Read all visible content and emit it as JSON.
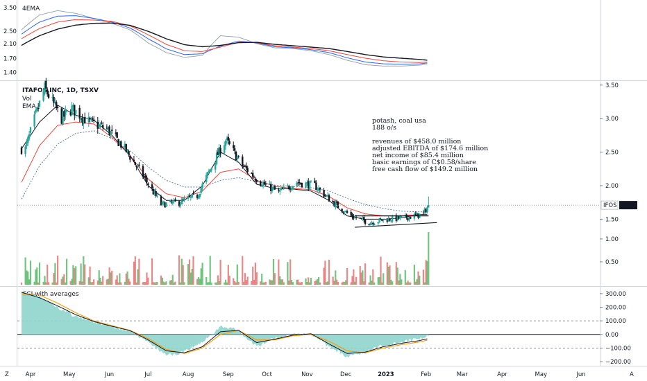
{
  "chart_data": [
    {
      "type": "line",
      "panel": "4ema",
      "title": "4EMA",
      "y_ticks": [
        "3.50",
        "2.50",
        "2.10",
        "1.70",
        "1.40"
      ],
      "y_tick_values": [
        3.5,
        2.5,
        2.1,
        1.7,
        1.4
      ],
      "ylim": [
        1.3,
        3.6
      ],
      "log_scale": true,
      "series": [
        {
          "color": "#131722",
          "x": [
            "2022-03-25",
            "2022-04-08",
            "2022-04-22",
            "2022-05-06",
            "2022-05-20",
            "2022-06-03",
            "2022-06-17",
            "2022-07-01",
            "2022-07-15",
            "2022-07-29",
            "2022-08-12",
            "2022-08-26",
            "2022-09-09",
            "2022-09-23",
            "2022-10-07",
            "2022-10-21",
            "2022-11-04",
            "2022-11-18",
            "2022-12-02",
            "2022-12-16",
            "2022-12-30",
            "2023-01-13",
            "2023-01-27",
            "2023-02-03"
          ],
          "values": [
            2.05,
            2.35,
            2.58,
            2.73,
            2.8,
            2.81,
            2.72,
            2.5,
            2.25,
            2.07,
            2.01,
            2.05,
            2.13,
            2.14,
            2.08,
            2.04,
            2.0,
            1.96,
            1.88,
            1.8,
            1.74,
            1.71,
            1.68,
            1.66
          ]
        },
        {
          "color": "#f44336",
          "x": [
            "2022-03-25",
            "2022-04-08",
            "2022-04-22",
            "2022-05-06",
            "2022-05-20",
            "2022-06-03",
            "2022-06-17",
            "2022-07-01",
            "2022-07-15",
            "2022-07-29",
            "2022-08-12",
            "2022-08-26",
            "2022-09-09",
            "2022-09-23",
            "2022-10-07",
            "2022-10-21",
            "2022-11-04",
            "2022-11-18",
            "2022-12-02",
            "2022-12-16",
            "2022-12-30",
            "2023-01-13",
            "2023-01-27",
            "2023-02-03"
          ],
          "values": [
            2.25,
            2.6,
            2.85,
            2.95,
            2.93,
            2.88,
            2.7,
            2.38,
            2.08,
            1.9,
            1.88,
            2.0,
            2.14,
            2.13,
            2.04,
            2.0,
            1.96,
            1.9,
            1.8,
            1.71,
            1.65,
            1.62,
            1.61,
            1.62
          ]
        },
        {
          "color": "#2962ff",
          "x": [
            "2022-03-25",
            "2022-04-08",
            "2022-04-22",
            "2022-05-06",
            "2022-05-20",
            "2022-06-03",
            "2022-06-17",
            "2022-07-01",
            "2022-07-15",
            "2022-07-29",
            "2022-08-12",
            "2022-08-26",
            "2022-09-09",
            "2022-09-23",
            "2022-10-07",
            "2022-10-21",
            "2022-11-04",
            "2022-11-18",
            "2022-12-02",
            "2022-12-16",
            "2022-12-30",
            "2023-01-13",
            "2023-01-27",
            "2023-02-03"
          ],
          "values": [
            2.4,
            2.85,
            3.1,
            3.12,
            3.0,
            2.85,
            2.62,
            2.25,
            1.95,
            1.8,
            1.82,
            2.03,
            2.18,
            2.12,
            2.01,
            1.98,
            1.93,
            1.85,
            1.72,
            1.62,
            1.58,
            1.57,
            1.58,
            1.6
          ]
        },
        {
          "color": "#9aa5b1",
          "x": [
            "2022-03-25",
            "2022-04-08",
            "2022-04-22",
            "2022-05-06",
            "2022-05-20",
            "2022-06-03",
            "2022-06-17",
            "2022-07-01",
            "2022-07-15",
            "2022-07-29",
            "2022-08-12",
            "2022-08-26",
            "2022-09-09",
            "2022-09-23",
            "2022-10-07",
            "2022-10-21",
            "2022-11-04",
            "2022-11-18",
            "2022-12-02",
            "2022-12-16",
            "2022-12-30",
            "2023-01-13",
            "2023-01-27",
            "2023-02-03"
          ],
          "values": [
            2.55,
            3.15,
            3.35,
            3.22,
            3.0,
            2.8,
            2.55,
            2.12,
            1.85,
            1.73,
            1.78,
            2.35,
            2.3,
            2.1,
            1.98,
            1.96,
            1.9,
            1.8,
            1.66,
            1.56,
            1.53,
            1.53,
            1.55,
            1.58
          ]
        }
      ]
    },
    {
      "type": "candlestick",
      "panel": "price",
      "title": "ITAFOS INC, 1D, TSXV",
      "legend": [
        "Vol",
        "EMA"
      ],
      "y_ticks": [
        "3.50",
        "3.00",
        "2.50",
        "2.00",
        "1.50"
      ],
      "y_tick_values": [
        3.5,
        3.0,
        2.5,
        2.0,
        1.5
      ],
      "ylim": [
        1.36,
        3.55
      ],
      "last_price_label": "IFOS",
      "last_price": "1.71",
      "last_price_value": 1.71,
      "candles_from": "2022-03-25",
      "candles_to": "2023-02-03",
      "key_closes": {
        "2022-03-28": 2.55,
        "2022-04-05": 3.05,
        "2022-04-12": 3.45,
        "2022-04-25": 3.0,
        "2022-05-03": 3.15,
        "2022-05-16": 2.95,
        "2022-05-30": 2.85,
        "2022-06-13": 2.55,
        "2022-06-27": 2.15,
        "2022-07-11": 1.72,
        "2022-07-25": 1.75,
        "2022-08-08": 1.85,
        "2022-08-22": 2.4,
        "2022-08-30": 2.68,
        "2022-09-12": 2.3,
        "2022-09-26": 2.05,
        "2022-10-10": 1.9,
        "2022-10-24": 2.05,
        "2022-11-07": 2.0,
        "2022-11-21": 1.75,
        "2022-12-05": 1.55,
        "2022-12-19": 1.45,
        "2023-01-02": 1.5,
        "2023-01-16": 1.52,
        "2023-01-30": 1.58,
        "2023-02-03": 1.71
      },
      "ema_lines": [
        {
          "color": "#131722",
          "style": "solid",
          "values": [
            2.55,
            2.95,
            3.2,
            3.05,
            2.98,
            2.75,
            2.45,
            2.0,
            1.78,
            1.78,
            2.0,
            2.5,
            2.35,
            2.02,
            1.96,
            1.95,
            1.92,
            1.78,
            1.55,
            1.5,
            1.5,
            1.52,
            1.57
          ]
        },
        {
          "color": "#f44336",
          "style": "solid",
          "values": [
            2.05,
            2.6,
            2.9,
            2.95,
            2.92,
            2.72,
            2.45,
            2.1,
            1.88,
            1.82,
            1.92,
            2.2,
            2.25,
            2.08,
            1.99,
            1.96,
            1.94,
            1.84,
            1.67,
            1.58,
            1.55,
            1.55,
            1.57
          ]
        },
        {
          "color": "#5b7fa3",
          "style": "dotted",
          "values": [
            1.8,
            2.3,
            2.62,
            2.78,
            2.82,
            2.7,
            2.52,
            2.28,
            2.08,
            1.98,
            1.98,
            2.08,
            2.12,
            2.06,
            2.01,
            1.99,
            1.97,
            1.92,
            1.81,
            1.72,
            1.66,
            1.62,
            1.61
          ]
        }
      ],
      "annotation_lines": [
        "potash, coal  usa",
        "188 o/s",
        "",
        "revenues of $458.0 million",
        "adjusted EBITDA of $174.6 million",
        "net income of $85.4 million",
        "basic earnings of C$0.58/share",
        "free cash flow of $149.2 million"
      ]
    },
    {
      "type": "bar",
      "panel": "volume",
      "y_ticks": [
        "1.00",
        "0.50"
      ],
      "y_tick_values": [
        1.0,
        0.5
      ],
      "note": "relative volume, final bar is the spike on Feb 3 2023"
    },
    {
      "type": "area",
      "panel": "cci",
      "title": "CCI with averages",
      "y_ticks": [
        "300.00",
        "200.00",
        "100.00",
        "0.00",
        "−100.00",
        "−200.00"
      ],
      "y_tick_values": [
        300,
        200,
        100,
        0,
        -100,
        -200
      ],
      "ylim": [
        -220,
        330
      ],
      "levels": [
        100,
        0,
        -100
      ],
      "cci": {
        "x": [
          "2022-03-25",
          "2022-04-08",
          "2022-04-22",
          "2022-05-06",
          "2022-05-20",
          "2022-06-03",
          "2022-06-17",
          "2022-07-01",
          "2022-07-15",
          "2022-07-29",
          "2022-08-12",
          "2022-08-26",
          "2022-09-09",
          "2022-09-23",
          "2022-10-07",
          "2022-10-21",
          "2022-11-04",
          "2022-11-18",
          "2022-12-02",
          "2022-12-16",
          "2022-12-30",
          "2023-01-13",
          "2023-01-27",
          "2023-02-03"
        ],
        "values": [
          320,
          280,
          200,
          130,
          95,
          60,
          25,
          -60,
          -150,
          -130,
          -60,
          60,
          30,
          -90,
          -30,
          0,
          10,
          -90,
          -160,
          -130,
          -80,
          -60,
          -30,
          -10
        ]
      },
      "avg_orange": [
        300,
        290,
        230,
        160,
        100,
        65,
        30,
        -30,
        -110,
        -140,
        -100,
        0,
        30,
        -40,
        -40,
        -10,
        0,
        -50,
        -120,
        -135,
        -100,
        -75,
        -55,
        -40
      ],
      "avg_black": [
        310,
        270,
        210,
        145,
        95,
        60,
        28,
        -40,
        -120,
        -135,
        -90,
        20,
        30,
        -60,
        -35,
        -5,
        5,
        -70,
        -140,
        -130,
        -90,
        -65,
        -45,
        -30
      ]
    }
  ],
  "x_axis": {
    "months": [
      "Apr",
      "May",
      "Jun",
      "Jul",
      "Aug",
      "Sep",
      "Oct",
      "Nov",
      "Dec",
      "2023",
      "Feb",
      "Mar",
      "Apr",
      "May",
      "Jun"
    ],
    "month_dates": [
      "2022-04-01",
      "2022-05-01",
      "2022-06-01",
      "2022-07-01",
      "2022-08-01",
      "2022-09-01",
      "2022-10-01",
      "2022-11-01",
      "2022-12-01",
      "2023-01-01",
      "2023-02-01",
      "2023-03-01",
      "2023-04-01",
      "2023-05-01",
      "2023-06-01"
    ],
    "corner_left": "Z",
    "corner_right": "A"
  },
  "colors": {
    "bull": "#26a69a",
    "bear": "#131722",
    "vol_up": "#5aba6a",
    "vol_down": "#e57373",
    "cci_fill": "#8fd5cc",
    "grid": "#e6e9ee",
    "border": "#d1d4dc"
  }
}
